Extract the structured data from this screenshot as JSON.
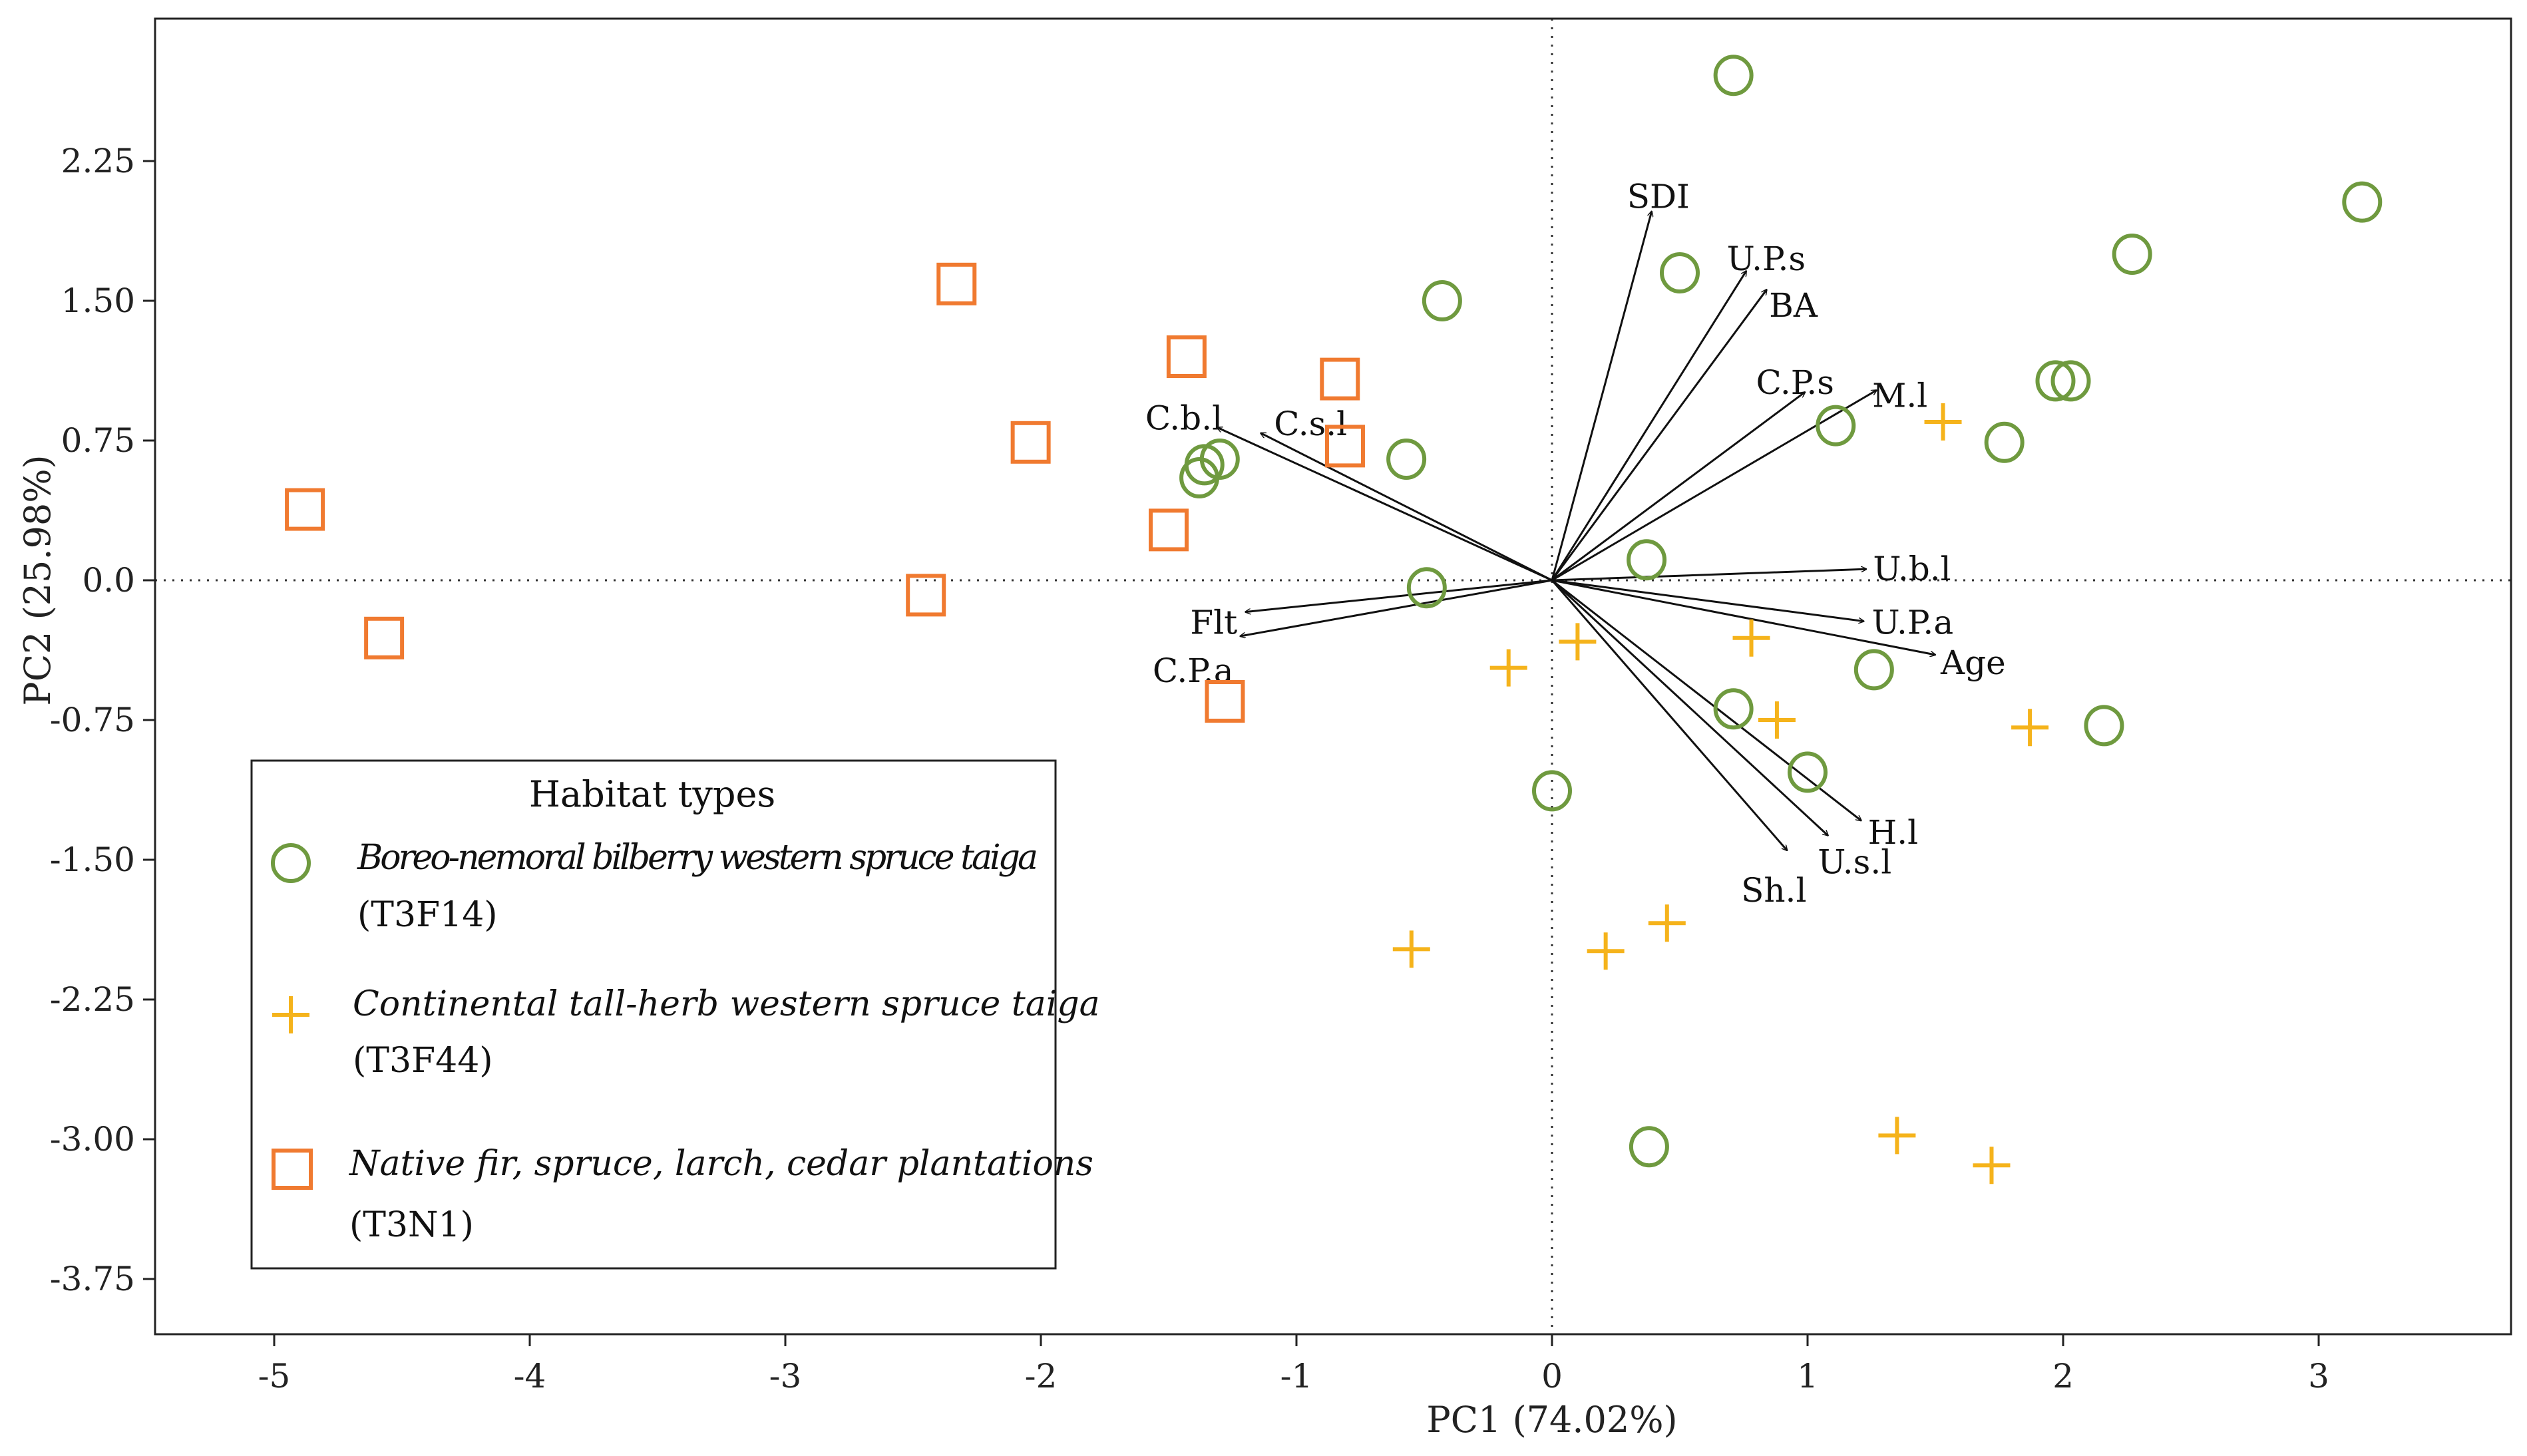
{
  "chart_data": {
    "type": "scatter",
    "subtype": "pca-biplot",
    "xlabel": "PC1 (74.02%)",
    "ylabel": "PC2 (25.98%)",
    "xlim": [
      -5.5,
      3.75
    ],
    "ylim": [
      -4.0,
      3.0
    ],
    "x_ticks": [
      -5,
      -4,
      -3,
      -2,
      -1,
      0,
      1,
      2,
      3
    ],
    "x_tick_labels": [
      "-5",
      "-4",
      "-3",
      "-2",
      "-1",
      "0",
      "1",
      "2",
      "3"
    ],
    "y_ticks": [
      2.25,
      1.5,
      0.75,
      0.0,
      -0.75,
      -1.5,
      -2.25,
      -3.0,
      -3.75
    ],
    "y_tick_labels": [
      "2.25",
      "1.50",
      "0.75",
      "0.0",
      "-0.75",
      "-1.50",
      "-2.25",
      "-3.00",
      "-3.75"
    ],
    "zero_lines": true,
    "colors": {
      "T3F14": "#6f9a3f",
      "T3F44": "#f5b31b",
      "T3N1": "#f07a30",
      "arrow": "#111111"
    },
    "series": [
      {
        "name": "T3F14",
        "marker": "circle",
        "points": [
          [
            0.71,
            2.71
          ],
          [
            3.17,
            2.03
          ],
          [
            2.27,
            1.75
          ],
          [
            0.5,
            1.65
          ],
          [
            -0.43,
            1.5
          ],
          [
            1.97,
            1.07
          ],
          [
            2.03,
            1.07
          ],
          [
            1.11,
            0.83
          ],
          [
            1.77,
            0.74
          ],
          [
            -0.57,
            0.65
          ],
          [
            -1.3,
            0.65
          ],
          [
            -1.36,
            0.62
          ],
          [
            -1.38,
            0.55
          ],
          [
            0.37,
            0.11
          ],
          [
            -0.49,
            -0.04
          ],
          [
            1.26,
            -0.48
          ],
          [
            0.71,
            -0.69
          ],
          [
            2.16,
            -0.78
          ],
          [
            1.0,
            -1.03
          ],
          [
            0.0,
            -1.13
          ],
          [
            0.38,
            -3.04
          ]
        ]
      },
      {
        "name": "T3F44",
        "marker": "plus",
        "points": [
          [
            1.53,
            0.85
          ],
          [
            0.1,
            -0.33
          ],
          [
            0.78,
            -0.31
          ],
          [
            -0.17,
            -0.47
          ],
          [
            0.88,
            -0.75
          ],
          [
            1.87,
            -0.79
          ],
          [
            0.45,
            -1.84
          ],
          [
            -0.55,
            -1.98
          ],
          [
            0.21,
            -1.99
          ],
          [
            1.35,
            -2.98
          ],
          [
            1.72,
            -3.14
          ]
        ]
      },
      {
        "name": "T3N1",
        "marker": "square",
        "points": [
          [
            -2.33,
            1.59
          ],
          [
            -1.43,
            1.2
          ],
          [
            -0.83,
            1.08
          ],
          [
            -2.04,
            0.74
          ],
          [
            -0.81,
            0.72
          ],
          [
            -4.88,
            0.38
          ],
          [
            -1.5,
            0.27
          ],
          [
            -2.45,
            -0.08
          ],
          [
            -4.57,
            -0.31
          ],
          [
            -1.28,
            -0.65
          ]
        ]
      }
    ],
    "loadings": [
      {
        "label": "SDI",
        "x": 0.39,
        "y": 1.98
      },
      {
        "label": "U.P.s",
        "x": 0.76,
        "y": 1.66
      },
      {
        "label": "BA",
        "x": 0.84,
        "y": 1.56
      },
      {
        "label": "C.P.s",
        "x": 0.99,
        "y": 1.01
      },
      {
        "label": "M.l",
        "x": 1.27,
        "y": 1.02
      },
      {
        "label": "U.b.l",
        "x": 1.23,
        "y": 0.06
      },
      {
        "label": "U.P.a",
        "x": 1.22,
        "y": -0.22
      },
      {
        "label": "Age",
        "x": 1.5,
        "y": -0.4
      },
      {
        "label": "H.l",
        "x": 1.21,
        "y": -1.29
      },
      {
        "label": "U.s.l",
        "x": 1.08,
        "y": -1.37
      },
      {
        "label": "Sh.l",
        "x": 0.92,
        "y": -1.45
      },
      {
        "label": "C.b.l",
        "x": -1.31,
        "y": 0.82
      },
      {
        "label": "C.s.l",
        "x": -1.14,
        "y": 0.79
      },
      {
        "label": "Flt",
        "x": -1.2,
        "y": -0.17
      },
      {
        "label": "C.P.a",
        "x": -1.22,
        "y": -0.3
      }
    ],
    "legend": {
      "title": "Habitat types",
      "position": "bottom-left",
      "entries": [
        {
          "series": "T3F14",
          "name": "Boreo-nemoral bilberry western spruce taiga",
          "code": "(T3F14)"
        },
        {
          "series": "T3F44",
          "name": "Continental tall-herb western spruce taiga",
          "code": "(T3F44)"
        },
        {
          "series": "T3N1",
          "name": "Native fir, spruce, larch, cedar plantations",
          "code": "(T3N1)"
        }
      ]
    }
  }
}
